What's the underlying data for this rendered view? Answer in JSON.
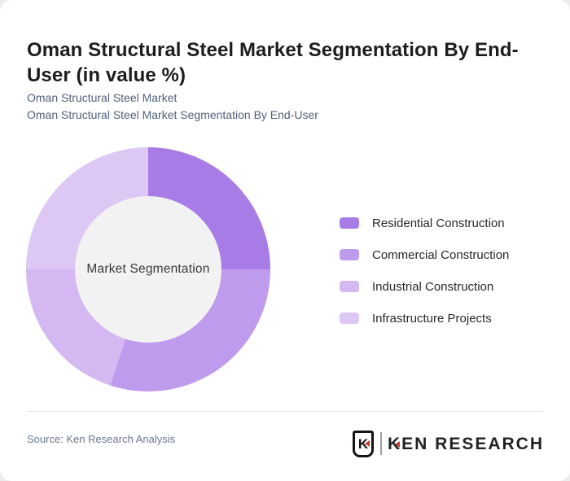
{
  "title": "Oman Structural Steel Market Segmentation By End-User (in value %)",
  "subtitle_line1": "Oman Structural Steel Market",
  "subtitle_line2": "Oman Structural Steel Market Segmentation By End-User",
  "source_text": "Source: Ken Research Analysis",
  "brand": {
    "mark_letter": "K",
    "wordmark_first_letter": "K",
    "wordmark_rest": "EN RESEARCH",
    "accent_red": "#c23b2e"
  },
  "chart_data": {
    "type": "pie",
    "subtype": "donut",
    "title": "Oman Structural Steel Market Segmentation By End-User (in value %)",
    "center_label": "Market Segmentation",
    "labels": [
      "Residential Construction",
      "Commercial Construction",
      "Industrial Construction",
      "Infrastructure Projects"
    ],
    "values": [
      25,
      30,
      20,
      25
    ],
    "values_are_estimates": true,
    "unit": "percent of value",
    "colors": [
      "#a87ce6",
      "#bf9bed",
      "#d3b8f1",
      "#ddc7f4"
    ],
    "hole_color": "#f2f2f2",
    "start_angle_deg": 0,
    "direction": "clockwise",
    "legend_position": "right",
    "data_labels_shown": false
  }
}
